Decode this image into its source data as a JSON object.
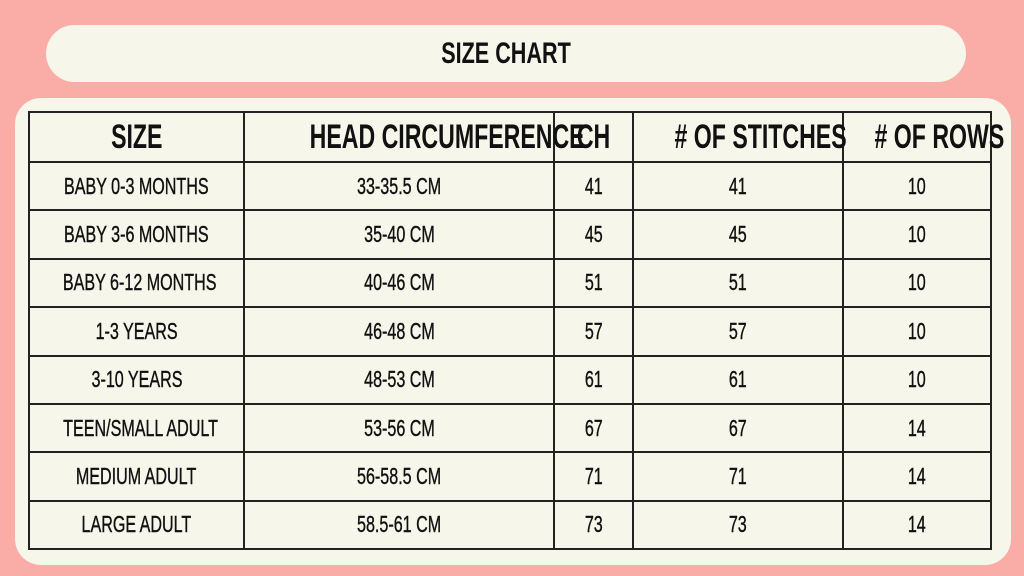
{
  "title": "SIZE CHART",
  "colors": {
    "background": "#F9ADA6",
    "panel": "#F6F6EA",
    "text": "#111111"
  },
  "table": {
    "headers": [
      "SIZE",
      "HEAD CIRCUMFERENCE",
      "CH",
      "# OF STITCHES",
      "# OF ROWS"
    ],
    "rows": [
      [
        "BABY 0-3 MONTHS",
        "33-35.5 CM",
        "41",
        "41",
        "10"
      ],
      [
        "BABY 3-6 MONTHS",
        "35-40 CM",
        "45",
        "45",
        "10"
      ],
      [
        "BABY 6-12 MONTHS",
        "40-46 CM",
        "51",
        "51",
        "10"
      ],
      [
        "1-3 YEARS",
        "46-48 CM",
        "57",
        "57",
        "10"
      ],
      [
        "3-10 YEARS",
        "48-53 CM",
        "61",
        "61",
        "10"
      ],
      [
        "TEEN/SMALL ADULT",
        "53-56 CM",
        "67",
        "67",
        "14"
      ],
      [
        "MEDIUM ADULT",
        "56-58.5 CM",
        "71",
        "71",
        "14"
      ],
      [
        "LARGE ADULT",
        "58.5-61 CM",
        "73",
        "73",
        "14"
      ]
    ]
  }
}
